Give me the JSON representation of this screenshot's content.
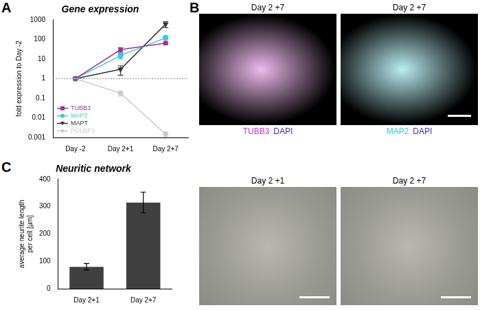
{
  "chart_data": [
    {
      "panel": "A",
      "type": "line",
      "title": "Gene expression",
      "y_label": "fold expression to Day -2",
      "categories": [
        "Day -2",
        "Day 2+1",
        "Day 2+7"
      ],
      "series": [
        {
          "name": "TUBB3",
          "color": "#993399",
          "marker": "square",
          "values": [
            1,
            30,
            65
          ],
          "errors": [
            0,
            8,
            5
          ]
        },
        {
          "name": "MAP2",
          "color": "#40c8d8",
          "marker": "circle",
          "values": [
            1,
            15,
            120
          ],
          "errors": [
            0,
            5,
            15
          ]
        },
        {
          "name": "MAPT",
          "color": "#333333",
          "marker": "triangle-down",
          "values": [
            1,
            3,
            600
          ],
          "errors": [
            0,
            1.5,
            200
          ]
        },
        {
          "name": "POU5F1",
          "color": "#c8c8c8",
          "marker": "diamond",
          "values": [
            1,
            0.18,
            0.0015
          ],
          "errors": [
            0,
            0.05,
            0.0004
          ]
        }
      ],
      "log": "y",
      "ylim": [
        0.001,
        1000
      ],
      "yticks": [
        0.001,
        0.01,
        0.1,
        1,
        10,
        100,
        1000
      ],
      "reference_line": 1,
      "grid": false,
      "legend": "lower left"
    },
    {
      "panel": "C",
      "type": "bar",
      "title": "Neuritic network",
      "y_label": [
        "average neurite length",
        "per cell [µm]"
      ],
      "categories": [
        "Day 2+1",
        "Day 2+7"
      ],
      "values": [
        80,
        315
      ],
      "errors": [
        12,
        38
      ],
      "color": "#404040",
      "ylim": [
        0,
        400
      ],
      "yticks": [
        0,
        100,
        200,
        300,
        400
      ],
      "grid": false
    }
  ],
  "panel_b": {
    "panel": "B",
    "images": [
      {
        "caption": "Day 2 +7",
        "stains": [
          {
            "text": "TUBB3",
            "color": "#cc33cc"
          },
          {
            "text": "DAPI",
            "color": "#3333cc"
          }
        ]
      },
      {
        "caption": "Day 2 +7",
        "stains": [
          {
            "text": "MAP2",
            "color": "#33c8d8"
          },
          {
            "text": "DAPI",
            "color": "#3333cc"
          }
        ]
      }
    ]
  },
  "panel_c_images": [
    {
      "caption": "Day 2 +1"
    },
    {
      "caption": "Day 2 +7"
    }
  ]
}
